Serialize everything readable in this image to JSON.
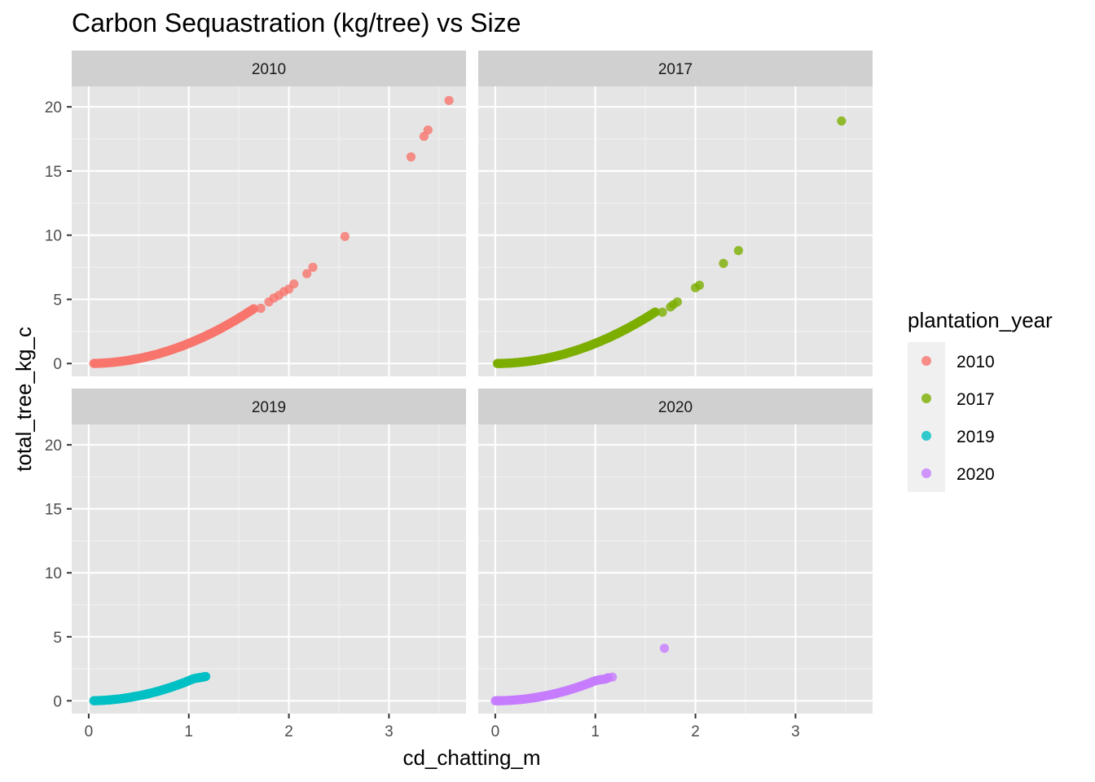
{
  "chart_data": {
    "type": "scatter",
    "title": "Carbon Sequastration (kg/tree)  vs Size",
    "xlabel": "cd_chatting_m",
    "ylabel": "total_tree_kg_c",
    "xlim": [
      -0.17,
      3.77
    ],
    "ylim": [
      -1.0,
      21.6
    ],
    "x_ticks": [
      0,
      1,
      2,
      3
    ],
    "x_tick_labels": [
      "0",
      "1",
      "2",
      "3"
    ],
    "y_ticks": [
      0,
      5,
      10,
      15,
      20
    ],
    "y_tick_labels": [
      "0",
      "5",
      "10",
      "15",
      "20"
    ],
    "grid": true,
    "facet_by": "plantation_year",
    "legend": {
      "title": "plantation_year",
      "position": "right",
      "entries": [
        {
          "label": "2010",
          "color": "#F8766D"
        },
        {
          "label": "2017",
          "color": "#7CAE00"
        },
        {
          "label": "2019",
          "color": "#00BFC4"
        },
        {
          "label": "2020",
          "color": "#C77CFF"
        }
      ]
    },
    "panels": [
      {
        "label": "2010",
        "color": "#F8766D",
        "curve_points": {
          "x": [
            0.05,
            0.1,
            0.15,
            0.2,
            0.25,
            0.3,
            0.35,
            0.4,
            0.45,
            0.5,
            0.55,
            0.6,
            0.65,
            0.7,
            0.75,
            0.8,
            0.85,
            0.9,
            0.95,
            1.0,
            1.05,
            1.1,
            1.15,
            1.2,
            1.25,
            1.3,
            1.35,
            1.4,
            1.45,
            1.5,
            1.55,
            1.6,
            1.65
          ],
          "y": [
            0.004,
            0.016,
            0.035,
            0.063,
            0.098,
            0.14,
            0.19,
            0.25,
            0.32,
            0.39,
            0.47,
            0.56,
            0.66,
            0.76,
            0.88,
            1.0,
            1.13,
            1.27,
            1.41,
            1.57,
            1.73,
            1.9,
            2.07,
            2.26,
            2.45,
            2.65,
            2.86,
            3.08,
            3.3,
            3.53,
            3.77,
            4.02,
            4.27
          ]
        },
        "outlier_points": {
          "x": [
            1.72,
            1.8,
            1.85,
            1.9,
            1.95,
            2.0,
            2.05,
            2.18,
            2.24,
            2.56,
            3.22,
            3.35,
            3.39,
            3.6
          ],
          "y": [
            4.3,
            4.8,
            5.1,
            5.3,
            5.6,
            5.8,
            6.2,
            7.0,
            7.5,
            9.9,
            16.1,
            17.7,
            18.2,
            20.5
          ]
        }
      },
      {
        "label": "2017",
        "color": "#7CAE00",
        "curve_points": {
          "x": [
            0.02,
            0.06,
            0.1,
            0.15,
            0.2,
            0.25,
            0.3,
            0.35,
            0.4,
            0.45,
            0.5,
            0.55,
            0.6,
            0.65,
            0.7,
            0.75,
            0.8,
            0.85,
            0.9,
            0.95,
            1.0,
            1.05,
            1.1,
            1.15,
            1.2,
            1.25,
            1.3,
            1.35,
            1.4,
            1.45,
            1.5,
            1.55,
            1.6
          ],
          "y": [
            0.001,
            0.006,
            0.016,
            0.035,
            0.063,
            0.098,
            0.14,
            0.19,
            0.25,
            0.32,
            0.39,
            0.47,
            0.56,
            0.66,
            0.76,
            0.88,
            1.0,
            1.13,
            1.27,
            1.41,
            1.57,
            1.73,
            1.9,
            2.07,
            2.26,
            2.45,
            2.65,
            2.86,
            3.08,
            3.3,
            3.53,
            3.77,
            4.02
          ]
        },
        "outlier_points": {
          "x": [
            1.67,
            1.75,
            1.78,
            1.82,
            2.0,
            2.04,
            2.28,
            2.43,
            3.46
          ],
          "y": [
            4.0,
            4.4,
            4.6,
            4.8,
            5.9,
            6.1,
            7.8,
            8.8,
            18.9
          ]
        }
      },
      {
        "label": "2019",
        "color": "#00BFC4",
        "curve_points": {
          "x": [
            0.05,
            0.1,
            0.15,
            0.2,
            0.25,
            0.3,
            0.35,
            0.4,
            0.45,
            0.5,
            0.55,
            0.6,
            0.65,
            0.7,
            0.75,
            0.8,
            0.85,
            0.9,
            0.95,
            1.0,
            1.05,
            1.1,
            1.14,
            1.17
          ],
          "y": [
            0.004,
            0.016,
            0.035,
            0.063,
            0.098,
            0.14,
            0.19,
            0.25,
            0.32,
            0.39,
            0.47,
            0.56,
            0.66,
            0.76,
            0.88,
            1.0,
            1.13,
            1.27,
            1.41,
            1.57,
            1.73,
            1.8,
            1.85,
            1.9
          ]
        },
        "outlier_points": {
          "x": [],
          "y": []
        }
      },
      {
        "label": "2020",
        "color": "#C77CFF",
        "curve_points": {
          "x": [
            0.0,
            0.05,
            0.1,
            0.15,
            0.2,
            0.25,
            0.3,
            0.35,
            0.4,
            0.45,
            0.5,
            0.55,
            0.6,
            0.65,
            0.7,
            0.75,
            0.8,
            0.85,
            0.9,
            0.95,
            1.0,
            1.05,
            1.1,
            1.13
          ],
          "y": [
            0.0,
            0.004,
            0.016,
            0.035,
            0.063,
            0.098,
            0.14,
            0.19,
            0.25,
            0.32,
            0.39,
            0.47,
            0.56,
            0.66,
            0.76,
            0.88,
            1.0,
            1.13,
            1.27,
            1.41,
            1.57,
            1.65,
            1.7,
            1.8
          ]
        },
        "outlier_points": {
          "x": [
            1.17,
            1.69
          ],
          "y": [
            1.85,
            4.1
          ]
        }
      }
    ]
  }
}
